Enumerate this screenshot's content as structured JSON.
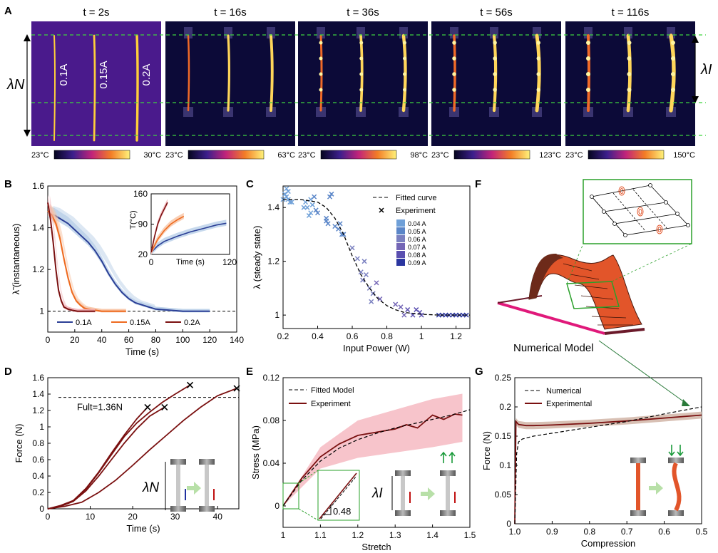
{
  "colors": {
    "blue": "#2b3f96",
    "orange": "#ee6a1f",
    "darkred": "#7a1010",
    "blue_band": "#b9cfe8",
    "orange_band": "#f8c3a3",
    "red_band": "#f2b0b6",
    "guide_green": "#3ed43e",
    "pink_band": "#f7c4cb",
    "rod_pink": "#e0197a",
    "strip_orange": "#e2552a",
    "box_green": "#2aa02a"
  },
  "panel_a": {
    "letter": "A",
    "frames": [
      {
        "time": "t = 2s",
        "min": "23°C",
        "max": "30°C",
        "labels": [
          "0.1A",
          "0.15A",
          "0.2A"
        ]
      },
      {
        "time": "t = 16s",
        "min": "23°C",
        "max": "63°C"
      },
      {
        "time": "t = 36s",
        "min": "23°C",
        "max": "98°C"
      },
      {
        "time": "t = 56s",
        "min": "23°C",
        "max": "123°C"
      },
      {
        "time": "t = 116s",
        "min": "23°C",
        "max": "150°C"
      }
    ],
    "lambda_n": "λN",
    "lambda_i": "λI"
  },
  "panel_b": {
    "letter": "B",
    "xlabel": "Time (s)",
    "ylabel": "λ̃ (instantaneous)",
    "xticks": [
      "0",
      "20",
      "40",
      "60",
      "80",
      "100",
      "120",
      "140"
    ],
    "yticks": [
      "1",
      "1.2",
      "1.4",
      "1.6"
    ],
    "legend": [
      "0.1A",
      "0.15A",
      "0.2A"
    ],
    "inset": {
      "ylabel": "T(°C)",
      "xlabel": "Time (s)",
      "yticks": [
        "20",
        "90",
        "160"
      ],
      "xticks": [
        "0",
        "120"
      ]
    }
  },
  "panel_c": {
    "letter": "C",
    "xlabel": "Input Power (W)",
    "ylabel": "λ (steady state)",
    "xticks": [
      "0.2",
      "0.4",
      "0.6",
      "0.8",
      "1",
      "1.2"
    ],
    "yticks": [
      "1",
      "1.2",
      "1.4"
    ],
    "legend_fit": "Fitted curve",
    "legend_exp": "Experiment",
    "currents": [
      "0.04 A",
      "0.05 A",
      "0.06 A",
      "0.07 A",
      "0.08 A",
      "0.09 A"
    ]
  },
  "panel_d": {
    "letter": "D",
    "xlabel": "Time (s)",
    "ylabel": "Force (N)",
    "xticks": [
      "0",
      "10",
      "20",
      "30",
      "40"
    ],
    "yticks": [
      "0",
      "0.2",
      "0.4",
      "0.6",
      "0.8",
      "1",
      "1.2",
      "1.4",
      "1.6"
    ],
    "annotation": "Fult=1.36N",
    "lambda_n": "λN"
  },
  "panel_e": {
    "letter": "E",
    "xlabel": "Stretch",
    "ylabel": "Stress (MPa)",
    "xticks": [
      "1",
      "1.1",
      "1.2",
      "1.3",
      "1.4",
      "1.5"
    ],
    "yticks": [
      "0",
      "0.04",
      "0.08",
      "0.12"
    ],
    "legend_fit": "Fitted Model",
    "legend_exp": "Experiment",
    "slope": "0.48",
    "lambda_i": "λI"
  },
  "panel_f": {
    "letter": "F",
    "caption": "Numerical Model"
  },
  "panel_g": {
    "letter": "G",
    "xlabel": "Compression",
    "ylabel": "Force (N)",
    "xticks": [
      "1.0",
      "0.9",
      "0.8",
      "0.7",
      "0.6",
      "0.5"
    ],
    "yticks": [
      "0",
      "0.05",
      "0.1",
      "0.15",
      "0.2",
      "0.25"
    ],
    "legend_num": "Numerical",
    "legend_exp": "Experimental"
  },
  "chart_data": [
    {
      "type": "line",
      "panel": "B",
      "xlabel": "Time (s)",
      "ylabel": "λ̃ (instantaneous)",
      "xlim": [
        0,
        140
      ],
      "ylim": [
        0.9,
        1.6
      ],
      "series": [
        {
          "name": "0.1A",
          "x": [
            0,
            5,
            10,
            15,
            20,
            25,
            30,
            35,
            40,
            45,
            50,
            55,
            60,
            65,
            70,
            75,
            80,
            90,
            100,
            110,
            120
          ],
          "y": [
            1.47,
            1.46,
            1.44,
            1.42,
            1.39,
            1.36,
            1.33,
            1.29,
            1.24,
            1.18,
            1.13,
            1.09,
            1.06,
            1.04,
            1.03,
            1.02,
            1.01,
            1.005,
            1.0,
            1.0,
            1.0
          ]
        },
        {
          "name": "0.15A",
          "x": [
            0,
            3,
            6,
            9,
            12,
            15,
            18,
            21,
            24,
            27,
            30,
            35,
            40,
            50,
            58
          ],
          "y": [
            1.48,
            1.46,
            1.42,
            1.35,
            1.25,
            1.16,
            1.09,
            1.05,
            1.03,
            1.015,
            1.01,
            1.005,
            1.0,
            1.0,
            1.0
          ]
        },
        {
          "name": "0.2A",
          "x": [
            0,
            2,
            4,
            6,
            8,
            10,
            12,
            15,
            18,
            22,
            27,
            35
          ],
          "y": [
            1.52,
            1.44,
            1.33,
            1.2,
            1.1,
            1.05,
            1.02,
            1.01,
            1.005,
            1.0,
            1.0,
            1.0
          ]
        }
      ],
      "reference_y": 1.0,
      "inset": {
        "xlabel": "Time (s)",
        "ylabel": "T(°C)",
        "xlim": [
          0,
          120
        ],
        "ylim": [
          20,
          160
        ],
        "series": [
          {
            "name": "0.1A",
            "x": [
              0,
              10,
              20,
              40,
              60,
              80,
              100,
              115
            ],
            "y": [
              25,
              40,
              50,
              62,
              72,
              80,
              88,
              92
            ]
          },
          {
            "name": "0.15A",
            "x": [
              0,
              10,
              20,
              30,
              40,
              50
            ],
            "y": [
              25,
              55,
              75,
              90,
              100,
              108
            ]
          },
          {
            "name": "0.2A",
            "x": [
              0,
              5,
              10,
              15,
              20,
              25
            ],
            "y": [
              25,
              60,
              90,
              110,
              125,
              140
            ]
          }
        ]
      }
    },
    {
      "type": "scatter",
      "panel": "C",
      "xlabel": "Input Power (W)",
      "ylabel": "λ (steady state)",
      "xlim": [
        0.2,
        1.28
      ],
      "ylim": [
        0.95,
        1.48
      ],
      "fitted_curve": {
        "x": [
          0.2,
          0.3,
          0.4,
          0.45,
          0.5,
          0.55,
          0.6,
          0.65,
          0.7,
          0.75,
          0.8,
          0.85,
          0.9,
          1.0,
          1.1,
          1.28
        ],
        "y": [
          1.43,
          1.43,
          1.42,
          1.4,
          1.36,
          1.3,
          1.22,
          1.15,
          1.1,
          1.06,
          1.035,
          1.02,
          1.01,
          1.003,
          1.0,
          1.0
        ]
      },
      "experiment": {
        "x": [
          0.21,
          0.22,
          0.23,
          0.24,
          0.22,
          0.25,
          0.2,
          0.23,
          0.33,
          0.34,
          0.36,
          0.37,
          0.39,
          0.35,
          0.32,
          0.38,
          0.4,
          0.36,
          0.45,
          0.46,
          0.47,
          0.48,
          0.5,
          0.52,
          0.53,
          0.54,
          0.45,
          0.55,
          0.6,
          0.63,
          0.65,
          0.66,
          0.68,
          0.7,
          0.72,
          0.74,
          0.76,
          0.71,
          0.67,
          0.85,
          0.88,
          0.9,
          0.92,
          0.95,
          0.97,
          0.99,
          1.0,
          1.1,
          1.12,
          1.14,
          1.16,
          1.18,
          1.2,
          1.22,
          1.24,
          1.26
        ],
        "y": [
          1.45,
          1.47,
          1.43,
          1.42,
          1.44,
          1.42,
          1.43,
          1.46,
          1.42,
          1.4,
          1.38,
          1.41,
          1.39,
          1.37,
          1.4,
          1.44,
          1.38,
          1.43,
          1.35,
          1.34,
          1.44,
          1.45,
          1.33,
          1.32,
          1.34,
          1.3,
          1.36,
          1.3,
          1.25,
          1.21,
          1.16,
          1.13,
          1.15,
          1.1,
          1.08,
          1.12,
          1.06,
          1.05,
          1.2,
          1.04,
          1.03,
          1.0,
          1.02,
          1.0,
          1.02,
          1.01,
          1.0,
          1.0,
          1.0,
          1.0,
          1.0,
          1.0,
          1.0,
          1.0,
          1.0,
          1.0
        ]
      },
      "currents": [
        "0.04 A",
        "0.05 A",
        "0.06 A",
        "0.07 A",
        "0.08 A",
        "0.09 A"
      ]
    },
    {
      "type": "line",
      "panel": "D",
      "xlabel": "Time (s)",
      "ylabel": "Force (N)",
      "xlim": [
        0,
        45
      ],
      "ylim": [
        0,
        1.6
      ],
      "reference_y": 1.36,
      "series": [
        {
          "x": [
            0,
            3,
            6,
            9,
            12,
            15,
            18,
            21,
            23.5
          ],
          "y": [
            0,
            0.03,
            0.1,
            0.25,
            0.45,
            0.68,
            0.9,
            1.1,
            1.24
          ]
        },
        {
          "x": [
            0,
            3,
            6,
            9,
            12,
            15,
            18,
            21,
            24,
            27.5
          ],
          "y": [
            0,
            0.03,
            0.09,
            0.22,
            0.4,
            0.6,
            0.8,
            0.98,
            1.13,
            1.24
          ]
        },
        {
          "x": [
            0,
            3,
            6,
            9,
            12,
            15,
            18,
            21,
            24,
            27,
            30,
            33.5
          ],
          "y": [
            0,
            0.04,
            0.1,
            0.24,
            0.44,
            0.66,
            0.88,
            1.05,
            1.18,
            1.3,
            1.4,
            1.51
          ]
        },
        {
          "x": [
            0,
            4,
            8,
            12,
            16,
            20,
            24,
            28,
            32,
            36,
            40,
            44.5
          ],
          "y": [
            0,
            0.03,
            0.08,
            0.2,
            0.35,
            0.53,
            0.72,
            0.9,
            1.08,
            1.24,
            1.38,
            1.47
          ]
        }
      ]
    },
    {
      "type": "line",
      "panel": "E",
      "xlabel": "Stretch",
      "ylabel": "Stress (MPa)",
      "xlim": [
        1.0,
        1.5
      ],
      "ylim": [
        -0.02,
        0.12
      ],
      "series": [
        {
          "name": "Fitted Model",
          "x": [
            1.0,
            1.05,
            1.1,
            1.15,
            1.2,
            1.25,
            1.3,
            1.35,
            1.4,
            1.45,
            1.5
          ],
          "y": [
            0,
            0.024,
            0.042,
            0.054,
            0.062,
            0.068,
            0.073,
            0.077,
            0.081,
            0.085,
            0.09
          ]
        },
        {
          "name": "Experiment",
          "x": [
            1.0,
            1.05,
            1.1,
            1.15,
            1.2,
            1.25,
            1.3,
            1.33,
            1.36,
            1.4,
            1.43,
            1.46,
            1.48
          ],
          "y": [
            0,
            0.026,
            0.046,
            0.058,
            0.066,
            0.069,
            0.072,
            0.076,
            0.073,
            0.085,
            0.081,
            0.086,
            0.085
          ]
        }
      ],
      "band": {
        "x": [
          1.0,
          1.1,
          1.2,
          1.3,
          1.4,
          1.48
        ],
        "lower": [
          0,
          0.035,
          0.045,
          0.05,
          0.055,
          0.06
        ],
        "upper": [
          0,
          0.055,
          0.08,
          0.09,
          0.1,
          0.105
        ]
      },
      "slope_label": "0.48"
    },
    {
      "type": "line",
      "panel": "G",
      "xlabel": "Compression",
      "ylabel": "Force (N)",
      "xlim": [
        1.0,
        0.5
      ],
      "ylim": [
        0,
        0.25
      ],
      "series": [
        {
          "name": "Numerical",
          "x": [
            1.0,
            0.995,
            0.99,
            0.98,
            0.95,
            0.9,
            0.8,
            0.7,
            0.6,
            0.5
          ],
          "y": [
            0,
            0.12,
            0.14,
            0.145,
            0.15,
            0.155,
            0.165,
            0.175,
            0.188,
            0.2
          ]
        },
        {
          "name": "Experimental",
          "x": [
            1.0,
            0.997,
            0.99,
            0.97,
            0.95,
            0.9,
            0.8,
            0.7,
            0.6,
            0.5
          ],
          "y": [
            0,
            0.175,
            0.17,
            0.168,
            0.168,
            0.169,
            0.172,
            0.176,
            0.181,
            0.186
          ]
        }
      ]
    }
  ]
}
